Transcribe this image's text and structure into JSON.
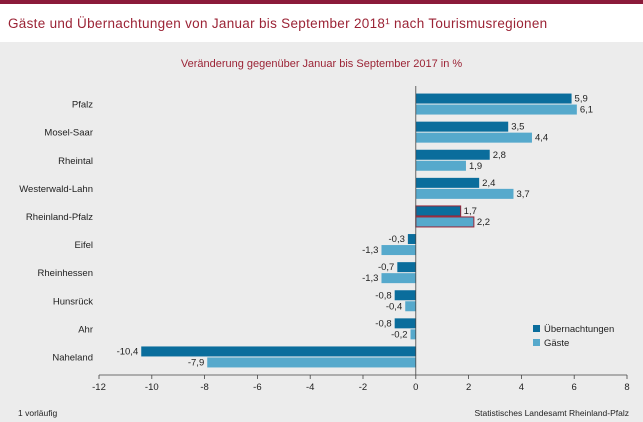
{
  "title": "Gäste und Übernachtungen von Januar bis September 2018¹ nach Tourismusregionen",
  "footnote": "1 vorläufig",
  "source": "Statistisches Landesamt Rheinland-Pfalz",
  "colors": {
    "uebernachtungen": "#0a6d9c",
    "gaeste": "#56a9cc",
    "highlight_border": "#9b2335",
    "title": "#9b2335"
  },
  "chart_data": {
    "type": "bar",
    "orientation": "horizontal",
    "subtitle": "Veränderung gegenüber Januar bis September 2017 in %",
    "categories": [
      "Pfalz",
      "Mosel-Saar",
      "Rheintal",
      "Westerwald-Lahn",
      "Rheinland-Pfalz",
      "Eifel",
      "Rheinhessen",
      "Hunsrück",
      "Ahr",
      "Naheland"
    ],
    "highlight_category": "Rheinland-Pfalz",
    "series": [
      {
        "name": "Übernachtungen",
        "values": [
          5.9,
          3.5,
          2.8,
          2.4,
          1.7,
          -0.3,
          -0.7,
          -0.8,
          -0.8,
          -10.4
        ],
        "labels": [
          "5,9",
          "3,5",
          "2,8",
          "2,4",
          "1,7",
          "-0,3",
          "-0,7",
          "-0,8",
          "-0,8",
          "-10,4"
        ]
      },
      {
        "name": "Gäste",
        "values": [
          6.1,
          4.4,
          1.9,
          3.7,
          2.2,
          -1.3,
          -1.3,
          -0.4,
          -0.2,
          -7.9
        ],
        "labels": [
          "6,1",
          "4,4",
          "1,9",
          "3,7",
          "2,2",
          "-1,3",
          "-1,3",
          "-0,4",
          "-0,2",
          "-7,9"
        ]
      }
    ],
    "xlim": [
      -12,
      8
    ],
    "xticks": [
      -12,
      -10,
      -8,
      -6,
      -4,
      -2,
      0,
      2,
      4,
      6,
      8
    ],
    "xtick_labels": [
      "-12",
      "-10",
      "-8",
      "-6",
      "-4",
      "-2",
      "0",
      "2",
      "4",
      "6",
      "8"
    ],
    "legend_position": "bottom-right",
    "grid": false
  }
}
